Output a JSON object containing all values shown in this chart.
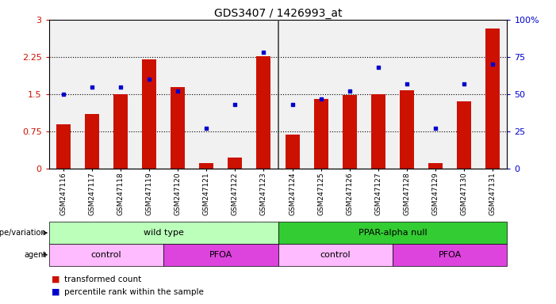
{
  "title": "GDS3407 / 1426993_at",
  "samples": [
    "GSM247116",
    "GSM247117",
    "GSM247118",
    "GSM247119",
    "GSM247120",
    "GSM247121",
    "GSM247122",
    "GSM247123",
    "GSM247124",
    "GSM247125",
    "GSM247126",
    "GSM247127",
    "GSM247128",
    "GSM247129",
    "GSM247130",
    "GSM247131"
  ],
  "bar_values": [
    0.9,
    1.1,
    1.5,
    2.2,
    1.65,
    0.12,
    0.22,
    2.27,
    0.68,
    1.4,
    1.48,
    1.5,
    1.58,
    0.12,
    1.35,
    2.82
  ],
  "dot_values": [
    50,
    55,
    55,
    60,
    52,
    27,
    43,
    78,
    43,
    47,
    52,
    68,
    57,
    27,
    57,
    70
  ],
  "bar_color": "#cc1100",
  "dot_color": "#0000cc",
  "ylim_left": [
    0,
    3
  ],
  "ylim_right": [
    0,
    100
  ],
  "yticks_left": [
    0,
    0.75,
    1.5,
    2.25,
    3
  ],
  "yticks_right": [
    0,
    25,
    50,
    75,
    100
  ],
  "ytick_labels_left": [
    "0",
    "0.75",
    "1.5",
    "2.25",
    "3"
  ],
  "ytick_labels_right": [
    "0",
    "25",
    "50",
    "75",
    "100%"
  ],
  "genotype_groups": [
    {
      "label": "wild type",
      "start": 0,
      "end": 8,
      "color": "#bbffbb"
    },
    {
      "label": "PPAR-alpha null",
      "start": 8,
      "end": 16,
      "color": "#33cc33"
    }
  ],
  "agent_groups": [
    {
      "label": "control",
      "start": 0,
      "end": 4,
      "color": "#ffbbff"
    },
    {
      "label": "PFOA",
      "start": 4,
      "end": 8,
      "color": "#dd44dd"
    },
    {
      "label": "control",
      "start": 8,
      "end": 12,
      "color": "#ffbbff"
    },
    {
      "label": "PFOA",
      "start": 12,
      "end": 16,
      "color": "#dd44dd"
    }
  ],
  "tick_label_fontsize": 6.5,
  "axis_tick_fontsize": 8,
  "axis_label_color_left": "#cc1100",
  "axis_label_color_right": "#0000cc",
  "col_bg_color": "#d8d8d8",
  "separator_color": "#444444"
}
